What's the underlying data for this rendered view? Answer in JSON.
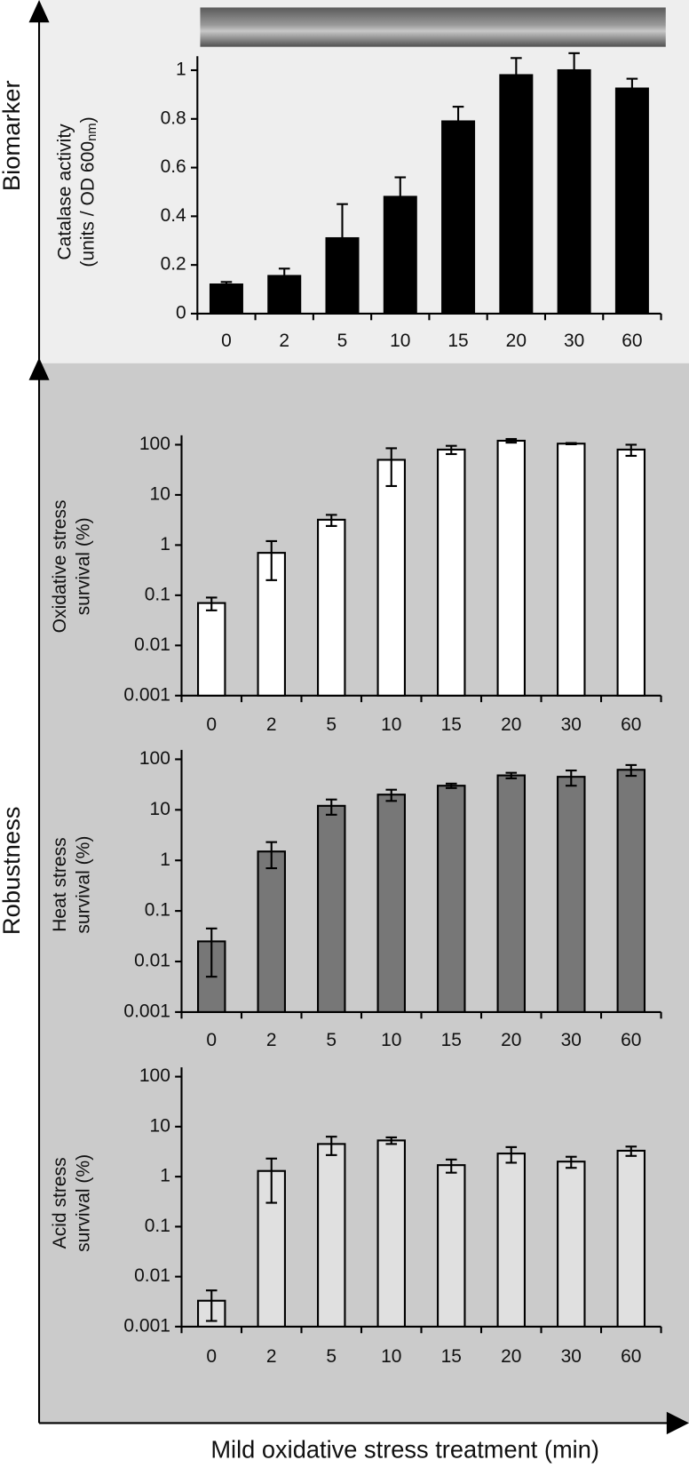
{
  "labels": {
    "biomarker": "Biomarker",
    "robustness": "Robustness",
    "xlabel": "Mild oxidative stress treatment (min)"
  },
  "chart_data": [
    {
      "type": "bar",
      "ylabel": [
        [
          "Catalase activity"
        ],
        [
          "(units / OD 600",
          "nm",
          ")"
        ]
      ],
      "categories": [
        "0",
        "2",
        "5",
        "10",
        "15",
        "20",
        "30",
        "60"
      ],
      "values": [
        0.12,
        0.155,
        0.31,
        0.48,
        0.79,
        0.98,
        1.0,
        0.925
      ],
      "errors": [
        0.01,
        0.03,
        0.14,
        0.08,
        0.06,
        0.07,
        0.07,
        0.04
      ],
      "error_bars": "up",
      "color": "#000000",
      "log": false,
      "ylim": [
        0,
        1
      ],
      "yticks": [
        0,
        0.2,
        0.4,
        0.6,
        0.8,
        1
      ]
    },
    {
      "type": "bar",
      "ylabel": [
        [
          "Oxidative stress"
        ],
        [
          "survival (%)"
        ]
      ],
      "categories": [
        "0",
        "2",
        "5",
        "10",
        "15",
        "20",
        "30",
        "60"
      ],
      "values": [
        0.07,
        0.7,
        3.2,
        50,
        80,
        120,
        105,
        80
      ],
      "errors": [
        0.02,
        0.5,
        0.8,
        35,
        15,
        10,
        3,
        20
      ],
      "error_bars": "both",
      "color": "#ffffff",
      "log": true,
      "ylim": [
        0.001,
        100
      ],
      "yticks": [
        0.001,
        0.01,
        0.1,
        1,
        10,
        100
      ]
    },
    {
      "type": "bar",
      "ylabel": [
        [
          "Heat stress"
        ],
        [
          "survival (%)"
        ]
      ],
      "categories": [
        "0",
        "2",
        "5",
        "10",
        "15",
        "20",
        "30",
        "60"
      ],
      "values": [
        0.025,
        1.5,
        12,
        20,
        30,
        48,
        45,
        62
      ],
      "errors": [
        0.02,
        0.8,
        4,
        5,
        3,
        6,
        15,
        15
      ],
      "error_bars": "both",
      "color": "#777777",
      "log": true,
      "ylim": [
        0.001,
        100
      ],
      "yticks": [
        0.001,
        0.01,
        0.1,
        1,
        10,
        100
      ]
    },
    {
      "type": "bar",
      "ylabel": [
        [
          "Acid stress"
        ],
        [
          "survival (%)"
        ]
      ],
      "categories": [
        "0",
        "2",
        "5",
        "10",
        "15",
        "20",
        "30",
        "60"
      ],
      "values": [
        0.0033,
        1.3,
        4.5,
        5.3,
        1.7,
        2.9,
        2.0,
        3.3
      ],
      "errors": [
        0.002,
        1.0,
        1.8,
        0.8,
        0.5,
        1.0,
        0.5,
        0.7
      ],
      "error_bars": "both",
      "color": "#e0e0e0",
      "log": true,
      "ylim": [
        0.001,
        100
      ],
      "yticks": [
        0.001,
        0.01,
        0.1,
        1,
        10,
        100
      ]
    }
  ]
}
